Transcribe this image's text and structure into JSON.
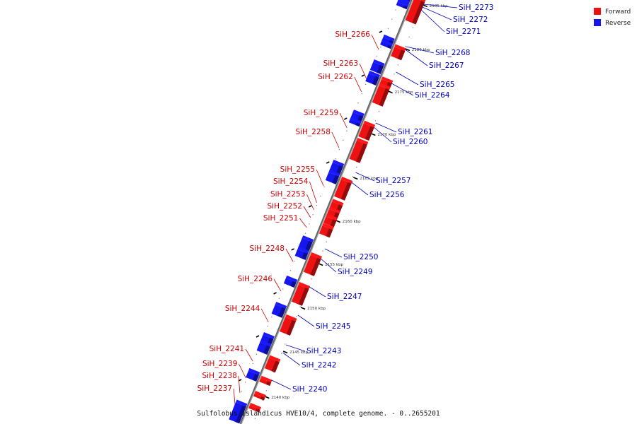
{
  "caption": "Sulfolobus islandicus HVE10/4, complete genome. - 0..2655201",
  "legend": {
    "items": [
      {
        "label": "Forward",
        "color": "#ee1111"
      },
      {
        "label": "Reverse",
        "color": "#1515ee"
      }
    ]
  },
  "colors": {
    "forward": "#ee1111",
    "reverse": "#1515ee",
    "forward_label": "#cc0000",
    "reverse_label": "#0000bb",
    "axis": "#8a8a8a"
  },
  "ticks": [
    "2185 kbp",
    "2180 kbp",
    "2175 kbp",
    "2170 kbp",
    "2165 kbp",
    "2160 kbp",
    "2155 kbp",
    "2150 kbp",
    "2145 kbp",
    "2140 kbp"
  ],
  "forward_genes": [
    "SiH_2266",
    "SiH_2263",
    "SiH_2262",
    "SiH_2259",
    "SiH_2258",
    "SiH_2255",
    "SiH_2254",
    "SiH_2253",
    "SiH_2252",
    "SiH_2251",
    "SiH_2248",
    "SiH_2246",
    "SiH_2244",
    "SiH_2241",
    "SiH_2239",
    "SiH_2238",
    "SiH_2237"
  ],
  "reverse_genes": [
    "SiH_2273",
    "SiH_2272",
    "SiH_2271",
    "SiH_2268",
    "SiH_2267",
    "SiH_2265",
    "SiH_2264",
    "SiH_2261",
    "SiH_2260",
    "SiH_2257",
    "SiH_2256",
    "SiH_2250",
    "SiH_2249",
    "SiH_2247",
    "SiH_2245",
    "SiH_2243",
    "SiH_2242",
    "SiH_2240"
  ]
}
